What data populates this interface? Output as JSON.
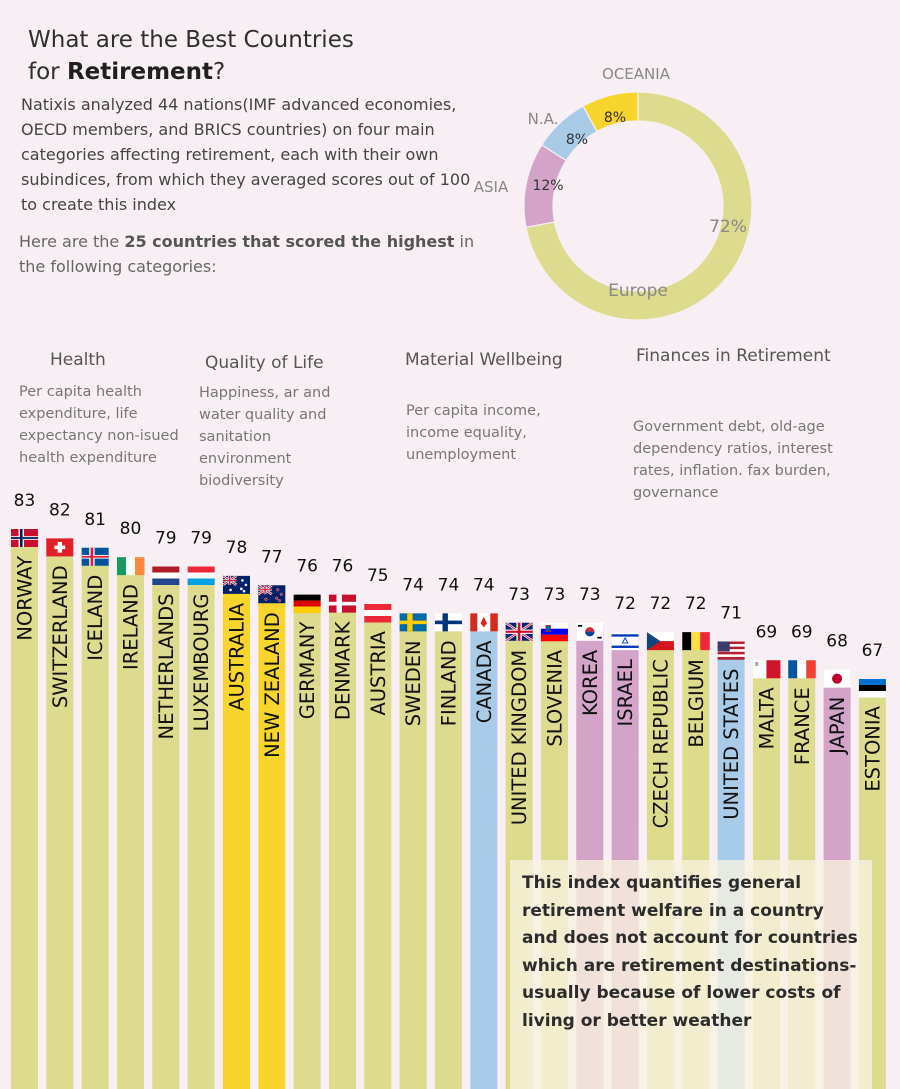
{
  "title": {
    "line1": "What are the Best Countries",
    "line2_prefix": "for ",
    "line2_bold": "Retirement",
    "line2_suffix": "?"
  },
  "intro": "Natixis analyzed 44 nations(IMF advanced economies, OECD members, and BRICS countries) on four main categories affecting retirement, each with their own subindices, from which they averaged scores out of 100 to create this index",
  "subintro": {
    "prefix": "Here are the ",
    "bold": "25 countries that scored the highest",
    "suffix": " in the following categories:"
  },
  "categories": [
    {
      "title": "Health",
      "desc": "Per capita health expenditure, life expectancy non-isued health expenditure"
    },
    {
      "title": "Quality of Life",
      "desc": "Happiness, ar and water quality and sanitation environment biodiversity"
    },
    {
      "title": "Material Wellbeing",
      "desc": "Per capita income, income equality, unemployment"
    },
    {
      "title": "Finances in Retirement",
      "desc": "Government debt, old-age dependency ratios, interest rates, inflation. fax burden, governance"
    }
  ],
  "note": "This index quantifies general retirement welfare in a country and does not account for countries which are retirement destinations-usually because of lower costs of living or better weather",
  "colors": {
    "Europe": "#dcdb8e",
    "Oceania": "#f8d52c",
    "North America": "#a8cbe8",
    "Asia": "#d4a4c8"
  },
  "chart_data": [
    {
      "type": "pie",
      "donut": true,
      "slices": [
        {
          "region": "Europe",
          "label": "Europe",
          "value": 72,
          "value_label": "72%"
        },
        {
          "region": "Asia",
          "label": "ASIA",
          "value": 12,
          "value_label": "12%"
        },
        {
          "region": "North America",
          "label": "N.A.",
          "value": 8,
          "value_label": "8%"
        },
        {
          "region": "Oceania",
          "label": "OCEANIA",
          "value": 8,
          "value_label": "8%"
        }
      ]
    },
    {
      "type": "bar",
      "categories": [
        "NORWAY",
        "SWITZERLAND",
        "ICELAND",
        "IRELAND",
        "NETHERLANDS",
        "LUXEMBOURG",
        "AUSTRALIA",
        "NEW ZEALAND",
        "GERMANY",
        "DENMARK",
        "AUSTRIA",
        "SWEDEN",
        "FINLAND",
        "CANADA",
        "UNITED KINGDOM",
        "SLOVENIA",
        "KOREA",
        "ISRAEL",
        "CZECH REPUBLIC",
        "BELGIUM",
        "UNITED STATES",
        "MALTA",
        "FRANCE",
        "JAPAN",
        "ESTONIA"
      ],
      "values": [
        83,
        82,
        81,
        80,
        79,
        79,
        78,
        77,
        76,
        76,
        75,
        74,
        74,
        74,
        73,
        73,
        73,
        72,
        72,
        72,
        71,
        69,
        69,
        68,
        67
      ],
      "regions": [
        "Europe",
        "Europe",
        "Europe",
        "Europe",
        "Europe",
        "Europe",
        "Oceania",
        "Oceania",
        "Europe",
        "Europe",
        "Europe",
        "Europe",
        "Europe",
        "North America",
        "Europe",
        "Europe",
        "Asia",
        "Asia",
        "Europe",
        "Europe",
        "North America",
        "Europe",
        "Europe",
        "Asia",
        "Europe"
      ],
      "flags": [
        "NO",
        "CH",
        "IS",
        "IE",
        "NL",
        "LU",
        "AU",
        "NZ",
        "DE",
        "DK",
        "AT",
        "SE",
        "FI",
        "CA",
        "GB",
        "SI",
        "KR",
        "IL",
        "CZ",
        "BE",
        "US",
        "MT",
        "FR",
        "JP",
        "EE"
      ]
    }
  ]
}
